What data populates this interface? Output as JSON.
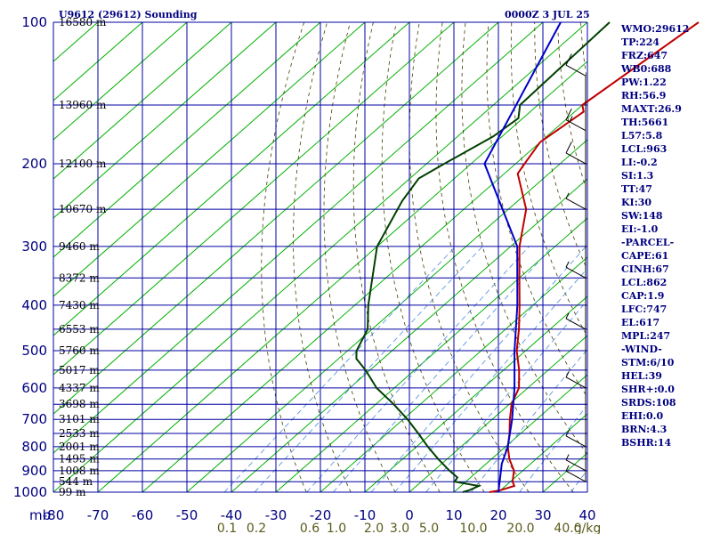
{
  "header": {
    "station": "U9612 (29612) Sounding",
    "time": "0000Z  3 JUL 25"
  },
  "chart_data": {
    "type": "line",
    "chart_kind": "Skew-T log-P sounding diagram",
    "x_axis": {
      "label": "",
      "unit_label": "mb",
      "range": [
        -80,
        40
      ],
      "ticks": [
        -80,
        -70,
        -60,
        -50,
        -40,
        -30,
        -20,
        -10,
        0,
        10,
        20,
        30,
        40
      ]
    },
    "y_axis": {
      "label": "",
      "scale": "log",
      "range": [
        1000,
        100
      ],
      "ticks": [
        100,
        200,
        300,
        400,
        500,
        600,
        700,
        800,
        900,
        1000
      ]
    },
    "height_labels": [
      {
        "p": 100,
        "text": "16580 m"
      },
      {
        "p": 150,
        "text": "13960 m"
      },
      {
        "p": 200,
        "text": "12100 m"
      },
      {
        "p": 250,
        "text": "10670 m"
      },
      {
        "p": 300,
        "text": "9460 m"
      },
      {
        "p": 350,
        "text": "8372 m"
      },
      {
        "p": 400,
        "text": "7430 m"
      },
      {
        "p": 450,
        "text": "6553 m"
      },
      {
        "p": 500,
        "text": "5760 m"
      },
      {
        "p": 550,
        "text": "5017 m"
      },
      {
        "p": 600,
        "text": "4337 m"
      },
      {
        "p": 650,
        "text": "3698 m"
      },
      {
        "p": 700,
        "text": "3101 m"
      },
      {
        "p": 750,
        "text": "2533 m"
      },
      {
        "p": 800,
        "text": "2001 m"
      },
      {
        "p": 850,
        "text": "1495 m"
      },
      {
        "p": 900,
        "text": "1008 m"
      },
      {
        "p": 950,
        "text": "544 m"
      },
      {
        "p": 1000,
        "text": "99 m"
      }
    ],
    "mixing_ratio_labels": [
      "0.1",
      "0.2",
      "0.6",
      "1.0",
      "2.0",
      "3.0",
      "5.0",
      "10.0",
      "20.0",
      "40.0",
      "g/kg"
    ],
    "series": [
      {
        "role": "temperature",
        "color": "#c00000",
        "points": [
          [
            100,
            -55
          ],
          [
            150,
            -60
          ],
          [
            155,
            -58
          ],
          [
            180,
            -60
          ],
          [
            200,
            -58
          ],
          [
            210,
            -57
          ],
          [
            250,
            -46
          ],
          [
            300,
            -38
          ],
          [
            350,
            -30
          ],
          [
            400,
            -23
          ],
          [
            450,
            -17
          ],
          [
            500,
            -12
          ],
          [
            550,
            -6.5
          ],
          [
            600,
            -2
          ],
          [
            650,
            0.5
          ],
          [
            700,
            4
          ],
          [
            750,
            7.5
          ],
          [
            800,
            10.5
          ],
          [
            850,
            14
          ],
          [
            900,
            18
          ],
          [
            950,
            20.5
          ],
          [
            970,
            22
          ],
          [
            990,
            20
          ],
          [
            1000,
            18
          ]
        ]
      },
      {
        "role": "dewpoint",
        "color": "#004000",
        "points": [
          [
            100,
            -75
          ],
          [
            150,
            -74
          ],
          [
            160,
            -71
          ],
          [
            175,
            -72
          ],
          [
            200,
            -76
          ],
          [
            215,
            -78
          ],
          [
            240,
            -76
          ],
          [
            300,
            -70
          ],
          [
            400,
            -57
          ],
          [
            450,
            -51
          ],
          [
            500,
            -48
          ],
          [
            520,
            -46
          ],
          [
            550,
            -41
          ],
          [
            600,
            -34
          ],
          [
            650,
            -26
          ],
          [
            700,
            -19
          ],
          [
            750,
            -13
          ],
          [
            800,
            -7.5
          ],
          [
            850,
            -2
          ],
          [
            900,
            3.5
          ],
          [
            930,
            7
          ],
          [
            950,
            7.5
          ],
          [
            970,
            14
          ],
          [
            990,
            13
          ],
          [
            1000,
            12
          ]
        ]
      },
      {
        "role": "parcel",
        "color": "#0000c8",
        "points": [
          [
            100,
            -86
          ],
          [
            200,
            -67
          ],
          [
            300,
            -38.5
          ],
          [
            400,
            -23.5
          ],
          [
            500,
            -12.5
          ],
          [
            600,
            -3
          ],
          [
            700,
            4.5
          ],
          [
            800,
            10.5
          ],
          [
            870,
            13.5
          ],
          [
            1000,
            20
          ]
        ]
      }
    ],
    "wind_barbs": [
      {
        "p": 130,
        "speed": 10
      },
      {
        "p": 170,
        "speed": 15
      },
      {
        "p": 200,
        "speed": 10
      },
      {
        "p": 250,
        "speed": 5
      },
      {
        "p": 350,
        "speed": 5
      },
      {
        "p": 450,
        "speed": 5
      },
      {
        "p": 600,
        "speed": 5
      },
      {
        "p": 800,
        "speed": 5
      },
      {
        "p": 900,
        "speed": 5
      },
      {
        "p": 950,
        "speed": 5
      }
    ]
  },
  "indices": [
    "WMO:29612",
    "TP:224",
    "FRZ:647",
    "WB0:688",
    "PW:1.22",
    "RH:56.9",
    "MAXT:26.9",
    "TH:5661",
    "L57:5.8",
    "LCL:963",
    "LI:-0.2",
    "SI:1.3",
    "TT:47",
    "KI:30",
    "SW:148",
    "EI:-1.0",
    "-PARCEL-",
    "CAPE:61",
    "CINH:67",
    "LCL:862",
    "CAP:1.9",
    "LFC:747",
    "EL:617",
    "MPL:247",
    "-WIND-",
    "STM:6/10",
    "HEL:39",
    "SHR+:0.0",
    "SRDS:108",
    "EHI:0.0",
    "BRN:4.3",
    "BSHR:14"
  ],
  "colors": {
    "isobar": "#0000a0",
    "isotherm": "#0000a0",
    "skewed_isotherm": "#00b000",
    "dry_adiabat": "#404000",
    "mixing_ratio": "#4a8ae0",
    "temperature": "#c00000",
    "dewpoint": "#004000",
    "parcel": "#0000c8"
  }
}
